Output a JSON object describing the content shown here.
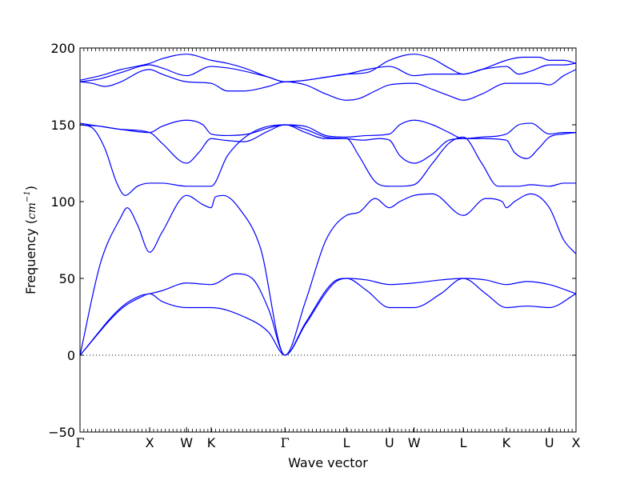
{
  "chart_data": {
    "type": "line",
    "title": "",
    "xlabel": "Wave vector",
    "ylabel_prefix": "Frequency (",
    "ylabel_unit": "cm",
    "ylabel_exponent": "−1",
    "ylabel_suffix": ")",
    "ylim": [
      -50,
      200
    ],
    "xlim": [
      0,
      12.1
    ],
    "yticks": [
      -50,
      0,
      50,
      100,
      150,
      200
    ],
    "ytick_labels": [
      "−50",
      "0",
      "50",
      "100",
      "150",
      "200"
    ],
    "xticks": [
      {
        "label": "Γ",
        "x": 0
      },
      {
        "label": "X",
        "x": 1.7
      },
      {
        "label": "W",
        "x": 2.6
      },
      {
        "label": "K",
        "x": 3.2
      },
      {
        "label": "Γ",
        "x": 5.0
      },
      {
        "label": "L",
        "x": 6.5
      },
      {
        "label": "U",
        "x": 7.55
      },
      {
        "label": "W",
        "x": 8.15
      },
      {
        "label": "L",
        "x": 9.35
      },
      {
        "label": "K",
        "x": 10.4
      },
      {
        "label": "U",
        "x": 11.45
      },
      {
        "label": "X",
        "x": 12.1
      }
    ],
    "zero_line": {
      "y": 0,
      "style": "dotted"
    },
    "grid": false,
    "legend": "none",
    "line_color": "#0000ff",
    "series": [
      {
        "x": [
          0,
          1.0,
          1.5,
          1.7,
          2.0,
          2.6,
          3.2,
          4.0,
          4.6,
          5.0,
          5.5,
          6.2,
          6.5,
          7.0,
          7.55,
          8.15,
          8.8,
          9.35,
          9.9,
          10.4,
          10.9,
          11.45,
          12.1
        ],
        "y": [
          0,
          30,
          38,
          40,
          35,
          31,
          31,
          25,
          15,
          0,
          20,
          47,
          50,
          42,
          31,
          31,
          40,
          50,
          40,
          31,
          32,
          31,
          40
        ]
      },
      {
        "x": [
          0,
          1.0,
          1.5,
          1.7,
          2.0,
          2.6,
          3.2,
          3.8,
          4.2,
          4.6,
          5.0,
          5.5,
          6.2,
          6.5,
          7.0,
          7.55,
          8.15,
          8.8,
          9.35,
          9.9,
          10.4,
          10.9,
          11.45,
          12.1
        ],
        "y": [
          0,
          31,
          39,
          40,
          42,
          47,
          46,
          53,
          50,
          30,
          0,
          21,
          48,
          50,
          49,
          46,
          47,
          49,
          50,
          49,
          46,
          48,
          46,
          40
        ]
      },
      {
        "x": [
          0,
          0.5,
          1.0,
          1.15,
          1.4,
          1.7,
          2.0,
          2.6,
          3.0,
          3.2,
          3.3,
          3.5,
          3.9,
          4.4,
          5.0,
          5.5,
          6.0,
          6.5,
          6.8,
          7.2,
          7.55,
          7.8,
          8.15,
          8.6,
          9.35,
          9.9,
          10.3,
          10.4,
          10.6,
          11.0,
          11.45,
          11.8,
          12.1
        ],
        "y": [
          0,
          60,
          90,
          96,
          85,
          67,
          80,
          104,
          98,
          96,
          103,
          104,
          95,
          70,
          0,
          35,
          75,
          91,
          93,
          102,
          96,
          100,
          104,
          105,
          91,
          102,
          100,
          96,
          100,
          105,
          96,
          75,
          66
        ]
      },
      {
        "x": [
          0,
          0.3,
          0.6,
          0.9,
          1.1,
          1.4,
          1.7,
          2.0,
          2.6,
          3.2,
          3.6,
          4.2,
          5.0,
          5.5,
          6.0,
          6.5,
          6.8,
          7.2,
          7.55,
          7.8,
          8.15,
          8.6,
          9.0,
          9.35,
          9.8,
          10.2,
          10.4,
          10.7,
          11.0,
          11.45,
          11.8,
          12.1
        ],
        "y": [
          150,
          148,
          135,
          112,
          104,
          110,
          112,
          112,
          110,
          110,
          130,
          145,
          150,
          145,
          141,
          141,
          130,
          113,
          110,
          110,
          111,
          125,
          138,
          142,
          125,
          110,
          110,
          110,
          111,
          110,
          112,
          112
        ]
      },
      {
        "x": [
          0,
          0.5,
          1.0,
          1.7,
          2.0,
          2.6,
          2.9,
          3.2,
          3.5,
          4.0,
          4.6,
          5.0,
          5.5,
          6.0,
          6.5,
          6.9,
          7.3,
          7.55,
          7.8,
          8.15,
          8.6,
          9.0,
          9.35,
          9.8,
          10.4,
          10.6,
          10.9,
          11.2,
          11.45,
          11.8,
          12.1
        ],
        "y": [
          150,
          149,
          147,
          145,
          138,
          125,
          132,
          141,
          140,
          139,
          146,
          150,
          147,
          142,
          141,
          140,
          141,
          140,
          130,
          125,
          131,
          140,
          141,
          141,
          140,
          132,
          128,
          135,
          142,
          144,
          145
        ]
      },
      {
        "x": [
          0,
          0.5,
          1.0,
          1.7,
          2.0,
          2.6,
          3.0,
          3.2,
          3.6,
          4.1,
          4.6,
          5.0,
          5.5,
          6.0,
          6.5,
          7.0,
          7.55,
          7.8,
          8.15,
          8.6,
          9.0,
          9.35,
          9.8,
          10.4,
          10.7,
          11.0,
          11.45,
          11.8,
          12.1
        ],
        "y": [
          151,
          149,
          147,
          145,
          149,
          153,
          150,
          144,
          143,
          144,
          148,
          150,
          149,
          143,
          142,
          143,
          144,
          150,
          153,
          150,
          145,
          141,
          142,
          144,
          150,
          151,
          144,
          145,
          145
        ]
      },
      {
        "x": [
          0,
          0.3,
          0.6,
          1.0,
          1.5,
          1.7,
          2.0,
          2.6,
          3.2,
          3.6,
          4.0,
          4.6,
          5.0,
          5.5,
          6.0,
          6.5,
          6.8,
          7.2,
          7.55,
          8.15,
          8.6,
          9.0,
          9.35,
          9.8,
          10.4,
          10.8,
          11.2,
          11.45,
          11.8,
          12.1
        ],
        "y": [
          178,
          177,
          175,
          178,
          185,
          186,
          183,
          178,
          177,
          172,
          172,
          175,
          178,
          176,
          170,
          166,
          167,
          172,
          176,
          177,
          173,
          169,
          166,
          170,
          177,
          177,
          177,
          176,
          182,
          186
        ]
      },
      {
        "x": [
          0,
          0.5,
          1.0,
          1.7,
          2.0,
          2.6,
          3.2,
          3.6,
          4.0,
          4.6,
          5.0,
          5.5,
          6.0,
          6.5,
          7.0,
          7.55,
          8.15,
          8.6,
          9.0,
          9.35,
          9.8,
          10.4,
          10.7,
          11.0,
          11.45,
          11.8,
          12.1
        ],
        "y": [
          178,
          180,
          184,
          189,
          187,
          182,
          188,
          187,
          185,
          181,
          178,
          179,
          181,
          183,
          186,
          188,
          182,
          183,
          183,
          183,
          186,
          188,
          183,
          185,
          189,
          189,
          190
        ]
      },
      {
        "x": [
          0,
          0.5,
          1.0,
          1.7,
          2.0,
          2.6,
          3.2,
          3.6,
          4.0,
          4.6,
          5.0,
          5.5,
          6.0,
          6.5,
          7.0,
          7.55,
          8.15,
          8.6,
          9.0,
          9.35,
          9.8,
          10.4,
          10.8,
          11.2,
          11.45,
          11.8,
          12.1
        ],
        "y": [
          179,
          182,
          186,
          190,
          193,
          196,
          192,
          190,
          187,
          181,
          178,
          179,
          181,
          183,
          184,
          192,
          196,
          193,
          187,
          183,
          186,
          192,
          194,
          194,
          192,
          192,
          190
        ]
      }
    ]
  }
}
